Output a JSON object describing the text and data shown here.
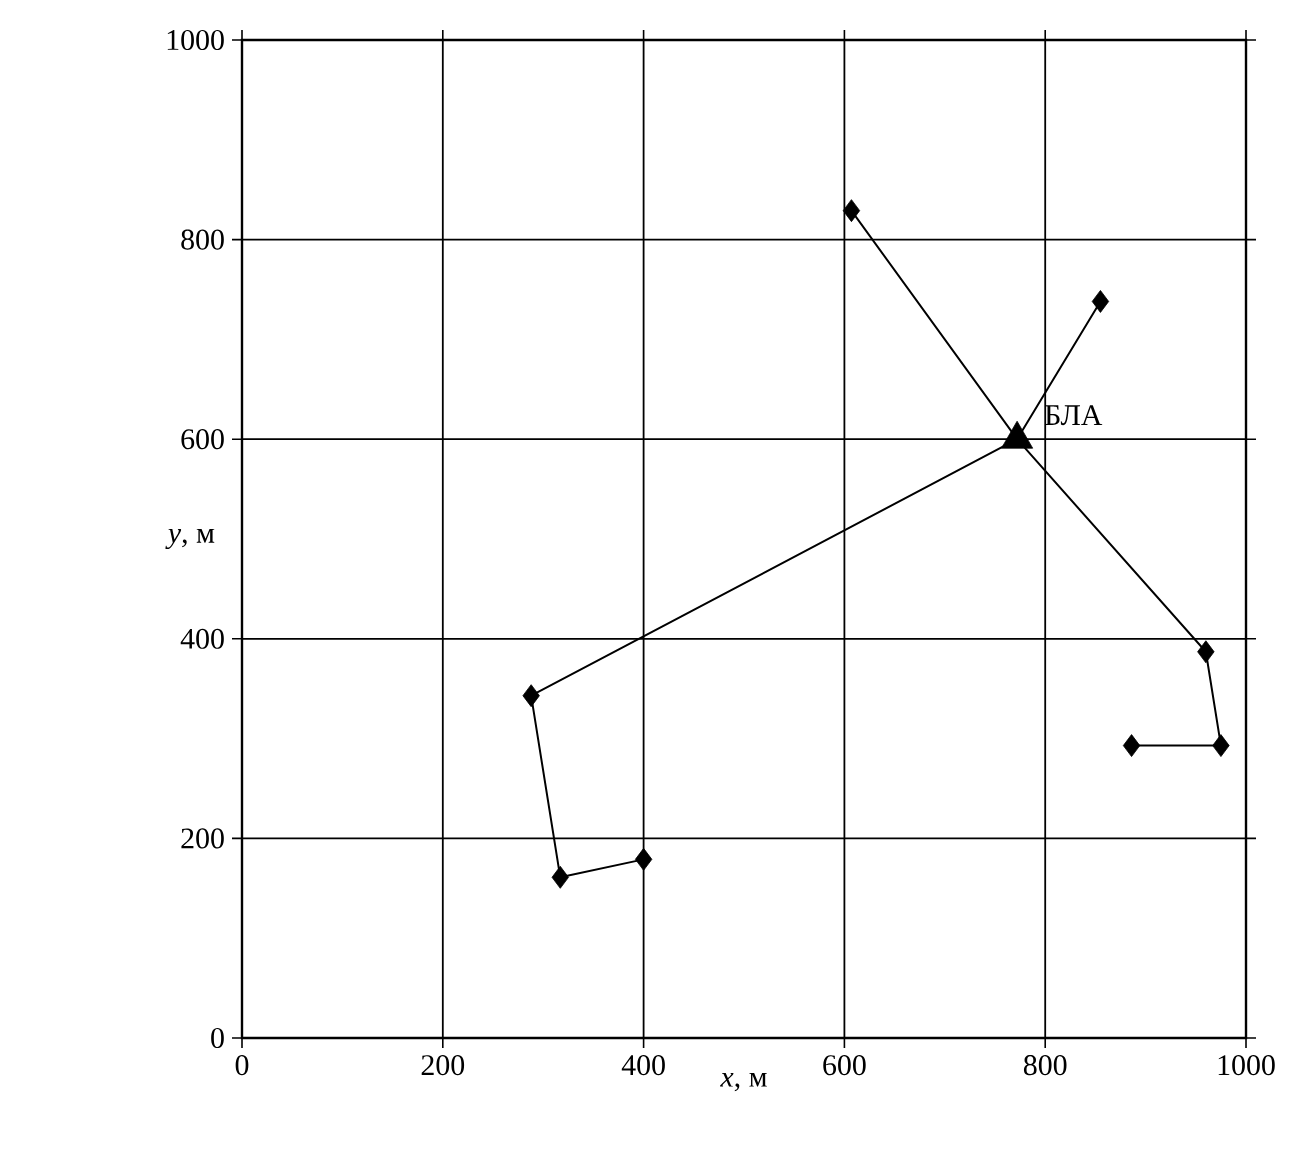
{
  "chart_data": {
    "type": "line",
    "xlabel": "*x*, м",
    "ylabel": "*y*, м",
    "xlim": [
      0,
      1000
    ],
    "ylim": [
      0,
      1000
    ],
    "xticks": [
      0,
      200,
      400,
      600,
      800,
      1000
    ],
    "yticks": [
      0,
      200,
      400,
      600,
      800,
      1000
    ],
    "grid": true,
    "line_style": "solid",
    "series": [
      {
        "marker": "none",
        "color": "#000000",
        "x": [
          607,
          772,
          960,
          975,
          886
        ],
        "values": [
          829,
          600,
          387,
          293,
          293
        ]
      },
      {
        "marker": "none",
        "color": "#000000",
        "x": [
          855,
          772,
          288,
          317,
          400
        ],
        "values": [
          738,
          600,
          343,
          161,
          179
        ]
      },
      {
        "type": "scatter",
        "marker": "diamond",
        "color": "#000000",
        "x": [
          607,
          960,
          975,
          886,
          855,
          288,
          317,
          400
        ],
        "values": [
          829,
          387,
          293,
          293,
          738,
          343,
          161,
          179
        ]
      },
      {
        "type": "scatter",
        "marker": "triangle",
        "color": "#000000",
        "x": [
          772
        ],
        "values": [
          600
        ]
      }
    ],
    "annotations": [
      {
        "text": "БЛА",
        "x": 772,
        "y": 600
      }
    ]
  }
}
